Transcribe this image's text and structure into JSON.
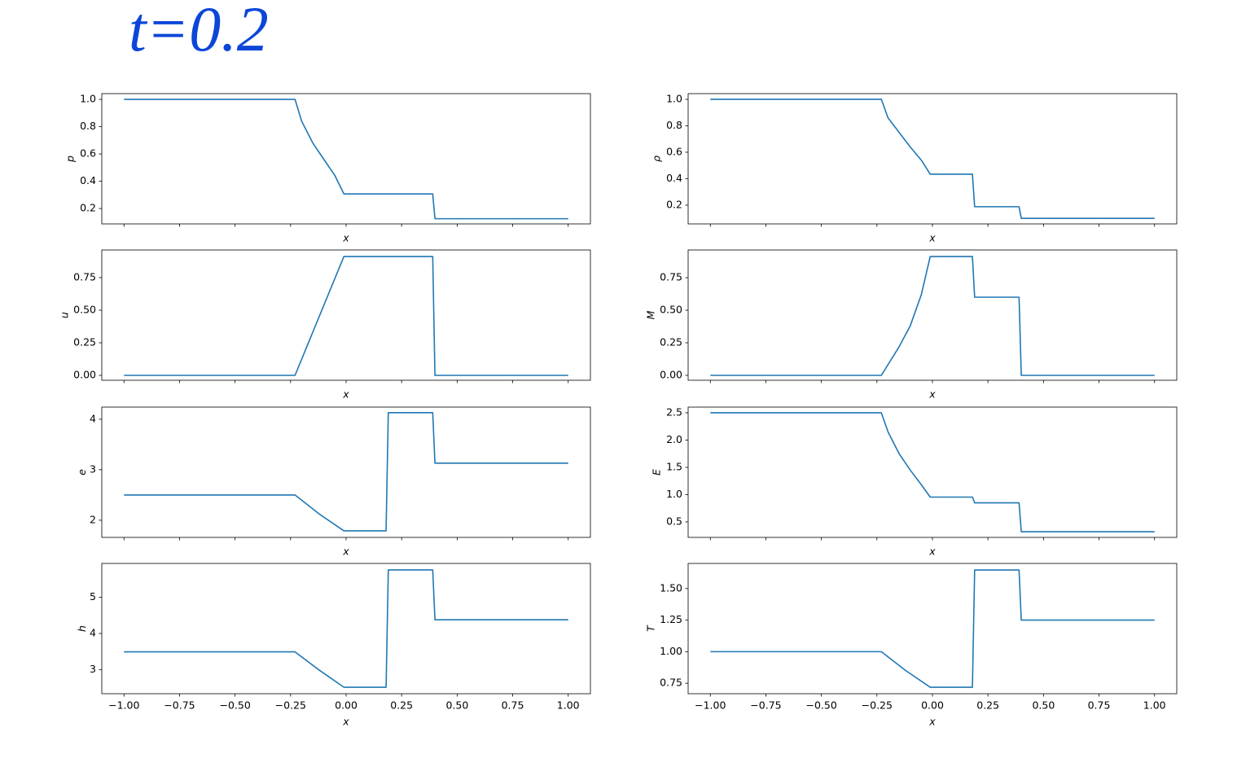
{
  "annotation": "t=0.2",
  "chart_data": [
    {
      "type": "line",
      "ylabel": "p",
      "xlabel": "x",
      "color": "#1f77b4",
      "x": [
        -1,
        -0.23,
        -0.2,
        -0.15,
        -0.1,
        -0.05,
        -0.01,
        0.39,
        0.4,
        1
      ],
      "values": [
        1,
        1,
        0.84,
        0.68,
        0.56,
        0.44,
        0.307,
        0.307,
        0.125,
        0.125
      ],
      "xlim": [
        -1.1,
        1.1
      ],
      "xticks": [
        -1,
        -0.75,
        -0.5,
        -0.25,
        0,
        0.25,
        0.5,
        0.75,
        1
      ],
      "xtick_labels": false,
      "ylim": [
        0.087,
        1.042
      ],
      "yticks": [
        0.2,
        0.4,
        0.6,
        0.8,
        {
          "value": 1,
          "label": "1.0"
        }
      ]
    },
    {
      "type": "line",
      "ylabel": "ρ",
      "xlabel": "x",
      "color": "#1f77b4",
      "x": [
        -1,
        -0.23,
        -0.2,
        -0.15,
        -0.1,
        -0.05,
        -0.01,
        0.18,
        0.19,
        0.39,
        0.4,
        1
      ],
      "values": [
        1,
        1,
        0.86,
        0.75,
        0.64,
        0.54,
        0.434,
        0.434,
        0.188,
        0.188,
        0.1,
        0.1
      ],
      "xlim": [
        -1.1,
        1.1
      ],
      "xticks": [
        -1,
        -0.75,
        -0.5,
        -0.25,
        0,
        0.25,
        0.5,
        0.75,
        1
      ],
      "xtick_labels": false,
      "ylim": [
        0.058,
        1.043
      ],
      "yticks": [
        0.2,
        0.4,
        0.6,
        0.8,
        {
          "value": 1,
          "label": "1.0"
        }
      ]
    },
    {
      "type": "line",
      "ylabel": "u",
      "xlabel": "x",
      "color": "#1f77b4",
      "x": [
        -1,
        -0.23,
        -0.01,
        0.39,
        0.4,
        1
      ],
      "values": [
        0,
        0,
        0.912,
        0.912,
        0,
        0
      ],
      "xlim": [
        -1.1,
        1.1
      ],
      "xticks": [
        -1,
        -0.75,
        -0.5,
        -0.25,
        0,
        0.25,
        0.5,
        0.75,
        1
      ],
      "xtick_labels": false,
      "ylim": [
        -0.0375,
        0.9625
      ],
      "yticks": [
        {
          "value": 0,
          "label": "0.00"
        },
        {
          "value": 0.25,
          "label": "0.25"
        },
        {
          "value": 0.5,
          "label": "0.50"
        },
        {
          "value": 0.75,
          "label": "0.75"
        }
      ]
    },
    {
      "type": "line",
      "ylabel": "M",
      "xlabel": "x",
      "color": "#1f77b4",
      "x": [
        -1,
        -0.23,
        -0.15,
        -0.1,
        -0.05,
        -0.01,
        0.18,
        0.19,
        0.39,
        0.4,
        1
      ],
      "values": [
        0,
        0,
        0.22,
        0.38,
        0.62,
        0.912,
        0.912,
        0.6,
        0.6,
        0,
        0
      ],
      "xlim": [
        -1.1,
        1.1
      ],
      "xticks": [
        -1,
        -0.75,
        -0.5,
        -0.25,
        0,
        0.25,
        0.5,
        0.75,
        1
      ],
      "xtick_labels": false,
      "ylim": [
        -0.0375,
        0.9625
      ],
      "yticks": [
        {
          "value": 0,
          "label": "0.00"
        },
        {
          "value": 0.25,
          "label": "0.25"
        },
        {
          "value": 0.5,
          "label": "0.50"
        },
        {
          "value": 0.75,
          "label": "0.75"
        }
      ]
    },
    {
      "type": "line",
      "ylabel": "e",
      "xlabel": "x",
      "color": "#1f77b4",
      "x": [
        -1,
        -0.23,
        -0.12,
        -0.01,
        0.18,
        0.19,
        0.39,
        0.4,
        1
      ],
      "values": [
        2.5,
        2.5,
        2.12,
        1.79,
        1.79,
        4.13,
        4.13,
        3.13,
        3.13
      ],
      "xlim": [
        -1.1,
        1.1
      ],
      "xticks": [
        -1,
        -0.75,
        -0.5,
        -0.25,
        0,
        0.25,
        0.5,
        0.75,
        1
      ],
      "xtick_labels": false,
      "ylim": [
        1.66,
        4.24
      ],
      "yticks": [
        2,
        3,
        4
      ]
    },
    {
      "type": "line",
      "ylabel": "E",
      "xlabel": "x",
      "color": "#1f77b4",
      "x": [
        -1,
        -0.23,
        -0.2,
        -0.15,
        -0.1,
        -0.05,
        -0.01,
        0.18,
        0.19,
        0.39,
        0.4,
        1
      ],
      "values": [
        2.5,
        2.5,
        2.15,
        1.75,
        1.45,
        1.18,
        0.955,
        0.955,
        0.85,
        0.85,
        0.32,
        0.32
      ],
      "xlim": [
        -1.1,
        1.1
      ],
      "xticks": [
        -1,
        -0.75,
        -0.5,
        -0.25,
        0,
        0.25,
        0.5,
        0.75,
        1
      ],
      "xtick_labels": false,
      "ylim": [
        0.216,
        2.604
      ],
      "yticks": [
        0.5,
        {
          "value": 1,
          "label": "1.0"
        },
        1.5,
        {
          "value": 2,
          "label": "2.0"
        },
        2.5
      ]
    },
    {
      "type": "line",
      "ylabel": "h",
      "xlabel": "x",
      "color": "#1f77b4",
      "x": [
        -1,
        -0.23,
        -0.12,
        -0.01,
        0.18,
        0.19,
        0.39,
        0.4,
        1
      ],
      "values": [
        3.49,
        3.49,
        2.98,
        2.51,
        2.51,
        5.76,
        5.76,
        4.38,
        4.38
      ],
      "xlim": [
        -1.1,
        1.1
      ],
      "xticks": [
        {
          "value": -1,
          "label": "−1.00"
        },
        {
          "value": -0.75,
          "label": "−0.75"
        },
        {
          "value": -0.5,
          "label": "−0.50"
        },
        {
          "value": -0.25,
          "label": "−0.25"
        },
        {
          "value": 0,
          "label": "0.00"
        },
        {
          "value": 0.25,
          "label": "0.25"
        },
        {
          "value": 0.5,
          "label": "0.50"
        },
        {
          "value": 0.75,
          "label": "0.75"
        },
        {
          "value": 1,
          "label": "1.00"
        }
      ],
      "ylim": [
        2.33,
        5.94
      ],
      "yticks": [
        3,
        4,
        5
      ]
    },
    {
      "type": "line",
      "ylabel": "T",
      "xlabel": "x",
      "color": "#1f77b4",
      "x": [
        -1,
        -0.23,
        -0.12,
        -0.01,
        0.18,
        0.19,
        0.39,
        0.4,
        1
      ],
      "values": [
        1,
        1,
        0.85,
        0.718,
        0.718,
        1.647,
        1.647,
        1.25,
        1.25
      ],
      "xlim": [
        -1.1,
        1.1
      ],
      "xticks": [
        {
          "value": -1,
          "label": "−1.00"
        },
        {
          "value": -0.75,
          "label": "−0.75"
        },
        {
          "value": -0.5,
          "label": "−0.50"
        },
        {
          "value": -0.25,
          "label": "−0.25"
        },
        {
          "value": 0,
          "label": "0.00"
        },
        {
          "value": 0.25,
          "label": "0.25"
        },
        {
          "value": 0.5,
          "label": "0.50"
        },
        {
          "value": 0.75,
          "label": "0.75"
        },
        {
          "value": 1,
          "label": "1.00"
        }
      ],
      "ylim": [
        0.667,
        1.699
      ],
      "yticks": [
        {
          "value": 0.75,
          "label": "0.75"
        },
        {
          "value": 1,
          "label": "1.00"
        },
        {
          "value": 1.25,
          "label": "1.25"
        },
        {
          "value": 1.5,
          "label": "1.50"
        }
      ]
    }
  ]
}
